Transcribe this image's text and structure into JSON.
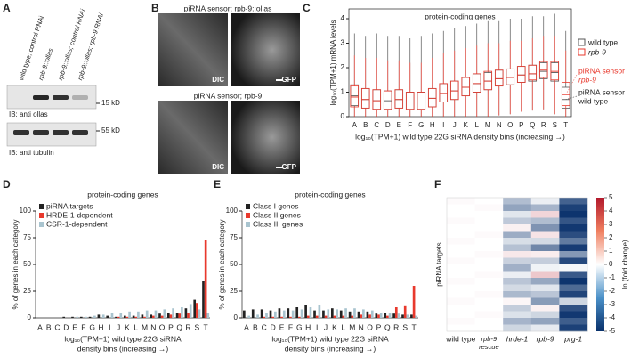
{
  "figure": {
    "panel_labels": [
      "A",
      "B",
      "C",
      "D",
      "E",
      "F"
    ],
    "blot": {
      "lanes": [
        "wild type; control RNAi",
        "rpb-9::ollas",
        "rpb-9::ollas; control RNAi",
        "rpb-9::ollas; rpb-9 RNAi"
      ],
      "markers": [
        "15 kD",
        "55 kD"
      ],
      "antibodies": [
        "IB: anti ollas",
        "IB: anti tubulin"
      ]
    },
    "images": {
      "rows": [
        {
          "title": "piRNA sensor; rpb-9::ollas",
          "labels": [
            "DIC",
            "GFP"
          ]
        },
        {
          "title": "piRNA sensor; rpb-9",
          "labels": [
            "DIC",
            "GFP"
          ]
        }
      ]
    }
  },
  "chart_data": [
    {
      "type": "boxplot",
      "title": "protein-coding genes",
      "ylabel": "log₁₀(TPM+1) mRNA levels",
      "xlabel": "log₁₀(TPM+1) wild type 22G siRNA density bins (increasing →)",
      "categories": [
        "A",
        "B",
        "C",
        "D",
        "E",
        "F",
        "G",
        "H",
        "I",
        "J",
        "K",
        "L",
        "M",
        "N",
        "O",
        "P",
        "Q",
        "R",
        "S",
        "T"
      ],
      "ylim": [
        0,
        4.4
      ],
      "yticks": [
        0,
        1,
        2,
        3,
        4
      ],
      "series": [
        {
          "name": "wild type",
          "color": "#555555",
          "median": [
            0.85,
            0.7,
            0.65,
            0.65,
            0.7,
            0.6,
            0.6,
            0.75,
            0.95,
            1.05,
            1.2,
            1.35,
            1.45,
            1.55,
            1.6,
            1.7,
            1.75,
            1.85,
            1.8,
            0.7
          ],
          "q1": [
            0.45,
            0.35,
            0.3,
            0.3,
            0.35,
            0.3,
            0.3,
            0.4,
            0.6,
            0.7,
            0.85,
            1.0,
            1.1,
            1.25,
            1.3,
            1.4,
            1.45,
            1.55,
            1.45,
            0.35
          ],
          "q3": [
            1.3,
            1.15,
            1.1,
            1.05,
            1.1,
            1.0,
            1.0,
            1.15,
            1.35,
            1.45,
            1.6,
            1.75,
            1.8,
            1.9,
            1.95,
            2.05,
            2.1,
            2.2,
            2.2,
            1.2
          ],
          "whisker_low": [
            0,
            0,
            0,
            0,
            0,
            0,
            0,
            0,
            0,
            0,
            0,
            0,
            0,
            0.05,
            0.1,
            0.2,
            0.25,
            0.3,
            0.1,
            0
          ],
          "whisker_high": [
            3.4,
            3.3,
            3.4,
            3.3,
            3.3,
            3.2,
            3.3,
            3.4,
            3.5,
            3.6,
            3.7,
            3.8,
            3.9,
            3.9,
            4.0,
            4.0,
            4.1,
            4.1,
            4.2,
            3.5
          ]
        },
        {
          "name": "rpb-9",
          "color": "#e8392d",
          "median": [
            0.8,
            0.7,
            0.65,
            0.6,
            0.7,
            0.6,
            0.6,
            0.75,
            0.95,
            1.05,
            1.2,
            1.35,
            1.45,
            1.55,
            1.6,
            1.7,
            1.75,
            1.9,
            1.85,
            0.9
          ],
          "q1": [
            0.4,
            0.35,
            0.3,
            0.3,
            0.35,
            0.3,
            0.3,
            0.4,
            0.6,
            0.7,
            0.85,
            1.0,
            1.1,
            1.25,
            1.3,
            1.4,
            1.5,
            1.6,
            1.5,
            0.45
          ],
          "q3": [
            1.25,
            1.15,
            1.1,
            1.05,
            1.1,
            1.0,
            1.0,
            1.15,
            1.35,
            1.45,
            1.6,
            1.75,
            1.85,
            1.9,
            1.95,
            2.05,
            2.1,
            2.25,
            2.25,
            1.4
          ],
          "whisker_low": [
            0,
            0,
            0,
            0,
            0,
            0,
            0,
            0,
            0,
            0,
            0,
            0,
            0,
            0.05,
            0.1,
            0.2,
            0.25,
            0.3,
            0.1,
            0
          ],
          "whisker_high": [
            2.5,
            2.4,
            2.4,
            2.3,
            2.3,
            2.2,
            2.2,
            2.4,
            2.6,
            2.7,
            2.8,
            2.9,
            3.0,
            3.0,
            3.1,
            3.1,
            3.2,
            3.3,
            3.3,
            2.7
          ]
        }
      ],
      "annotations": [
        {
          "lines": [
            "piRNA sensor",
            "rpb-9"
          ],
          "color": "#e8392d"
        },
        {
          "lines": [
            "piRNA sensor",
            "wild type"
          ],
          "color": "#222222"
        }
      ]
    },
    {
      "type": "bar",
      "title": "protein-coding genes",
      "ylabel": "% of genes in each category",
      "xlabel": [
        "log₁₀(TPM+1) wild type 22G siRNA",
        "density bins (increasing →)"
      ],
      "categories": [
        "A",
        "B",
        "C",
        "D",
        "E",
        "F",
        "G",
        "H",
        "I",
        "J",
        "K",
        "L",
        "M",
        "N",
        "O",
        "P",
        "Q",
        "R",
        "S",
        "T"
      ],
      "ylim": [
        0,
        100
      ],
      "yticks": [
        0,
        25,
        50,
        75,
        100
      ],
      "series": [
        {
          "name": "piRNA targets",
          "color": "#222222",
          "values": [
            0,
            0,
            0,
            1,
            1,
            1,
            1,
            3,
            2,
            1,
            2,
            2,
            3,
            3,
            4,
            5,
            5,
            9,
            17,
            35
          ]
        },
        {
          "name": "HRDE-1-dependent",
          "color": "#e8392d",
          "values": [
            0,
            0,
            0,
            0,
            0,
            0,
            0,
            0,
            0,
            1,
            1,
            1,
            1,
            2,
            2,
            3,
            4,
            5,
            14,
            73
          ]
        },
        {
          "name": "CSR-1-dependent",
          "color": "#a9c4cf",
          "values": [
            0,
            0,
            0,
            0,
            1,
            1,
            2,
            3,
            5,
            5,
            6,
            6,
            7,
            7,
            8,
            9,
            10,
            13,
            8,
            5
          ]
        }
      ]
    },
    {
      "type": "bar",
      "title": "protein-coding genes",
      "ylabel": "% of genes in each category",
      "xlabel": [
        "log₁₀(TPM+1) wild type 22G siRNA",
        "density bins (increasing →)"
      ],
      "categories": [
        "A",
        "B",
        "C",
        "D",
        "E",
        "F",
        "G",
        "H",
        "I",
        "J",
        "K",
        "L",
        "M",
        "N",
        "O",
        "P",
        "Q",
        "R",
        "S",
        "T"
      ],
      "ylim": [
        0,
        100
      ],
      "yticks": [
        0,
        25,
        50,
        75,
        100
      ],
      "series": [
        {
          "name": "Class I genes",
          "color": "#222222",
          "values": [
            7,
            8,
            8,
            7,
            9,
            9,
            10,
            12,
            7,
            7,
            9,
            7,
            6,
            6,
            6,
            4,
            5,
            4,
            3,
            3
          ]
        },
        {
          "name": "Class II genes",
          "color": "#e8392d",
          "values": [
            0,
            0,
            1,
            1,
            1,
            1,
            1,
            2,
            2,
            2,
            2,
            2,
            2,
            3,
            3,
            3,
            2,
            10,
            11,
            30
          ]
        },
        {
          "name": "Class III genes",
          "color": "#a9c4cf",
          "values": [
            2,
            3,
            5,
            6,
            7,
            7,
            8,
            10,
            12,
            8,
            8,
            9,
            9,
            8,
            7,
            5,
            5,
            4,
            3,
            2
          ]
        }
      ]
    },
    {
      "type": "heatmap",
      "ylabel": "piRNA targets",
      "column_labels": [
        [
          "wild type"
        ],
        [
          "rpb-9",
          "rescue"
        ],
        [
          "hrde-1"
        ],
        [
          "rpb-9"
        ],
        [
          "prg-1"
        ]
      ],
      "values": [
        [
          0.1,
          0.0,
          -1.6,
          -0.4,
          -3.8
        ],
        [
          0.0,
          0.1,
          -2.2,
          -1.8,
          -4.6
        ],
        [
          0.0,
          0.0,
          -0.6,
          0.9,
          -4.9
        ],
        [
          0.1,
          0.0,
          -1.3,
          -1.6,
          -4.1
        ],
        [
          0.0,
          0.0,
          0.3,
          -2.6,
          -4.8
        ],
        [
          0.0,
          0.1,
          -2.0,
          0.6,
          -4.3
        ],
        [
          0.1,
          0.0,
          -0.8,
          -0.9,
          -3.2
        ],
        [
          0.0,
          0.0,
          -1.5,
          -2.9,
          -4.7
        ],
        [
          0.0,
          0.1,
          0.5,
          0.4,
          -2.5
        ],
        [
          0.1,
          0.0,
          -1.1,
          -1.2,
          -4.4
        ],
        [
          0.0,
          0.0,
          -1.9,
          -0.3,
          -0.2
        ],
        [
          0.0,
          0.1,
          -0.4,
          1.2,
          -4.0
        ],
        [
          0.1,
          0.0,
          -1.4,
          -2.1,
          -4.9
        ],
        [
          0.0,
          0.0,
          -0.9,
          -0.6,
          -3.6
        ],
        [
          0.0,
          0.1,
          -1.7,
          -1.4,
          -4.5
        ],
        [
          0.1,
          0.0,
          0.2,
          -2.4,
          -1.0
        ],
        [
          0.0,
          0.0,
          -1.2,
          0.3,
          -4.2
        ],
        [
          0.0,
          0.1,
          -0.7,
          -1.0,
          -4.8
        ],
        [
          0.1,
          0.0,
          -1.8,
          -2.2,
          -3.9
        ],
        [
          0.0,
          0.0,
          -1.0,
          -0.5,
          -4.6
        ]
      ],
      "clim": [
        -5,
        5
      ],
      "cticks": [
        -5,
        -4,
        -3,
        -2,
        -1,
        0,
        1,
        2,
        3,
        4,
        5
      ],
      "clabel": "ln (fold change)"
    }
  ]
}
